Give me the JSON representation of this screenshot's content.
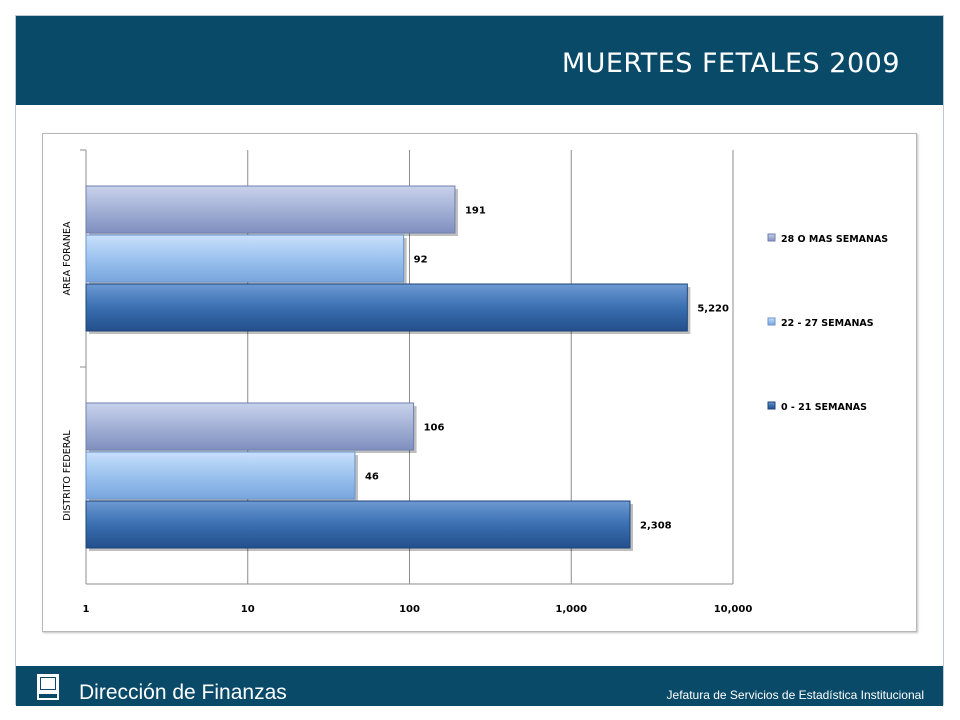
{
  "slide": {
    "title": "MUERTES FETALES 2009"
  },
  "footer": {
    "department": "Dirección de Finanzas",
    "office": "Jefatura de Servicios de Estadística Institucional",
    "logo_icon": "imss-logo-icon"
  },
  "colors": {
    "header_bg": "#0a4a69",
    "series_28_plus": "#a3b1d6",
    "series_22_27": "#9cc3ef",
    "series_0_21": "#3a6fb1"
  },
  "chart_data": {
    "type": "bar",
    "orientation": "horizontal",
    "x_scale": "log",
    "xlim": [
      1,
      10000
    ],
    "x_ticks": [
      "1",
      "10",
      "100",
      "1,000",
      "10,000"
    ],
    "categories": [
      "AREA FORANEA",
      "DISTRITO FEDERAL"
    ],
    "series": [
      {
        "name": "28 O MAS SEMANAS",
        "values": [
          191,
          106
        ],
        "labels": [
          "191",
          "106"
        ]
      },
      {
        "name": "22 - 27 SEMANAS",
        "values": [
          92,
          46
        ],
        "labels": [
          "92",
          "46"
        ]
      },
      {
        "name": "0 - 21 SEMANAS",
        "values": [
          5220,
          2308
        ],
        "labels": [
          "5,220",
          "2,308"
        ]
      }
    ],
    "legend": "right",
    "grid": true
  }
}
